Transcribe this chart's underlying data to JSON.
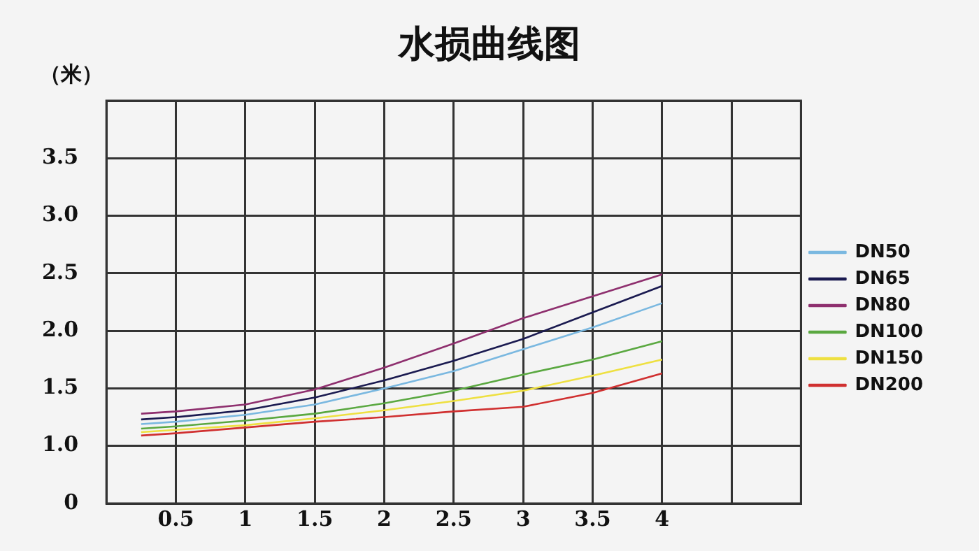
{
  "chart_data": {
    "type": "line",
    "title": "水损曲线图",
    "ylabel": "（米）",
    "x": [
      0.25,
      0.5,
      1,
      1.5,
      2,
      2.5,
      3,
      3.5,
      4
    ],
    "series": [
      {
        "name": "DN50",
        "color": "#7ab8e0",
        "values": [
          1.19,
          1.21,
          1.27,
          1.36,
          1.5,
          1.65,
          1.84,
          2.03,
          2.24
        ]
      },
      {
        "name": "DN65",
        "color": "#1a1a50",
        "values": [
          1.23,
          1.25,
          1.31,
          1.42,
          1.57,
          1.74,
          1.93,
          2.16,
          2.39
        ]
      },
      {
        "name": "DN80",
        "color": "#8e2f6e",
        "values": [
          1.28,
          1.3,
          1.36,
          1.49,
          1.68,
          1.89,
          2.11,
          2.3,
          2.49
        ]
      },
      {
        "name": "DN100",
        "color": "#5aa840",
        "values": [
          1.15,
          1.17,
          1.22,
          1.28,
          1.37,
          1.48,
          1.62,
          1.75,
          1.91
        ]
      },
      {
        "name": "DN150",
        "color": "#eee040",
        "values": [
          1.12,
          1.14,
          1.18,
          1.24,
          1.31,
          1.39,
          1.48,
          1.61,
          1.75
        ]
      },
      {
        "name": "DN200",
        "color": "#d03030",
        "values": [
          1.09,
          1.11,
          1.16,
          1.21,
          1.25,
          1.3,
          1.34,
          1.46,
          1.63
        ]
      }
    ],
    "xlim": [
      0,
      5
    ],
    "xticks": [
      {
        "value": 0,
        "label": null
      },
      0.5,
      1,
      1.5,
      2,
      2.5,
      3,
      3.5,
      4,
      {
        "value": 4.5,
        "label": null
      },
      {
        "value": 5,
        "label": null
      }
    ],
    "ylim": [
      0.5,
      4
    ],
    "yticks": [
      {
        "value": 0.5,
        "label": "0"
      },
      {
        "value": 1,
        "label": "1.0"
      },
      1.5,
      {
        "value": 2,
        "label": "2.0"
      },
      2.5,
      {
        "value": 3,
        "label": "3.0"
      },
      3.5,
      {
        "value": 4,
        "label": null
      }
    ],
    "grid": true,
    "legend": "right",
    "marker": "none",
    "line_style": "solid"
  }
}
